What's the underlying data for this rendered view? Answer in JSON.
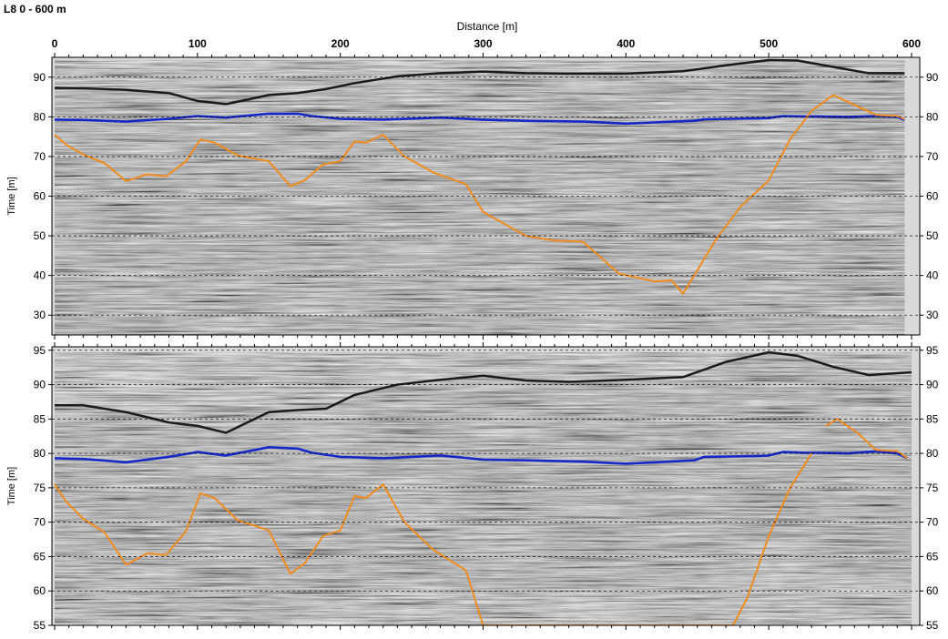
{
  "title": "L8 0 - 600 m",
  "xlabel": "Distance [m]",
  "chart_data": [
    {
      "type": "line",
      "panel": "top",
      "xlabel": "Distance [m]",
      "ylabel": "Time [m]",
      "xlim": [
        0,
        600
      ],
      "ylim": [
        25,
        95
      ],
      "x_ticks": [
        0,
        100,
        200,
        300,
        400,
        500,
        600
      ],
      "y_ticks": [
        30,
        40,
        50,
        60,
        70,
        80,
        90
      ],
      "y_tick_labels": [
        "30",
        "40",
        "50",
        "60",
        "70",
        "80",
        "90"
      ],
      "grid": true,
      "surface": {
        "x": [
          0,
          20,
          50,
          80,
          100,
          120,
          150,
          170,
          190,
          210,
          240,
          270,
          300,
          330,
          360,
          400,
          440,
          470,
          500,
          520,
          545,
          570,
          595
        ],
        "y": [
          87.3,
          87.2,
          86.8,
          86,
          84,
          83.2,
          85.5,
          86,
          87,
          88.5,
          90.2,
          91,
          91.4,
          91,
          90.9,
          90.9,
          91.5,
          93,
          94.3,
          94.2,
          92.6,
          91,
          91
        ]
      },
      "series": [
        {
          "color": "#1428c8",
          "x": [
            0,
            20,
            50,
            80,
            100,
            120,
            150,
            170,
            180,
            200,
            230,
            270,
            300,
            330,
            370,
            400,
            420,
            448,
            455,
            490,
            500,
            510,
            525,
            535,
            555,
            575,
            590,
            595
          ],
          "y": [
            79.3,
            79.2,
            78.8,
            79.5,
            80.2,
            79.8,
            80.8,
            80.8,
            80.2,
            79.5,
            79.3,
            79.8,
            79.3,
            79,
            78.8,
            78.3,
            78.6,
            79,
            79.4,
            79.6,
            79.7,
            80.2,
            80.1,
            80.1,
            80,
            80.2,
            80,
            79.2
          ]
        },
        {
          "color": "#f08c1e",
          "x": [
            0,
            8,
            20,
            35,
            50,
            65,
            78,
            92,
            102,
            112,
            128,
            150,
            165,
            175,
            188,
            200,
            210,
            218,
            230,
            245,
            265,
            288,
            300,
            330,
            350,
            370,
            395,
            420,
            432,
            440,
            462,
            480,
            500,
            515,
            530,
            545,
            560,
            575,
            590,
            595
          ],
          "y": [
            75.5,
            73,
            70.5,
            68.3,
            63.8,
            65.5,
            65,
            68.8,
            74.3,
            73.5,
            70.3,
            68.8,
            62.5,
            64,
            68,
            68.8,
            73.8,
            73.5,
            75.5,
            70,
            66,
            63,
            56,
            50,
            48.8,
            48.5,
            40.5,
            38.5,
            38.8,
            35.4,
            48.5,
            57.3,
            64,
            74.4,
            81.5,
            85.5,
            83,
            80.5,
            80.2,
            79.4
          ]
        }
      ]
    },
    {
      "type": "line",
      "panel": "bottom",
      "xlabel": "Distance [m]",
      "ylabel": "Time [m]",
      "xlim": [
        0,
        600
      ],
      "ylim": [
        55,
        95.5
      ],
      "x_ticks": [
        0,
        100,
        200,
        300,
        400,
        500,
        600
      ],
      "y_ticks": [
        55,
        60,
        65,
        70,
        75,
        80,
        85,
        90,
        95
      ],
      "y_tick_labels": [
        "55",
        "60",
        "65",
        "70",
        "75",
        "80",
        "85",
        "90",
        "95"
      ],
      "grid": true,
      "surface": {
        "x": [
          0,
          20,
          50,
          80,
          100,
          120,
          150,
          170,
          190,
          210,
          240,
          270,
          300,
          330,
          360,
          400,
          440,
          470,
          500,
          520,
          545,
          570,
          600
        ],
        "y": [
          87,
          87,
          86,
          84.5,
          84,
          83,
          86,
          86.3,
          86.5,
          88.5,
          90,
          90.7,
          91.3,
          90.6,
          90.4,
          90.7,
          91.1,
          93.3,
          94.7,
          94.2,
          92.6,
          91.4,
          91.8
        ]
      },
      "series": [
        {
          "color": "#1428c8",
          "x": [
            0,
            20,
            50,
            80,
            100,
            120,
            150,
            170,
            180,
            200,
            230,
            270,
            300,
            330,
            370,
            400,
            420,
            448,
            455,
            490,
            500,
            510,
            525,
            535,
            555,
            575,
            590,
            597
          ],
          "y": [
            79.3,
            79.2,
            78.7,
            79.5,
            80.2,
            79.7,
            80.9,
            80.7,
            80.1,
            79.5,
            79.3,
            79.7,
            79.1,
            79,
            78.8,
            78.5,
            78.7,
            79,
            79.5,
            79.6,
            79.7,
            80.2,
            80.1,
            80.1,
            80,
            80.3,
            80,
            79.3
          ]
        },
        {
          "color": "#f08c1e",
          "x": [
            0,
            8,
            20,
            35,
            50,
            65,
            78,
            92,
            102,
            112,
            128,
            150,
            165,
            175,
            188,
            200,
            210,
            218,
            230,
            245,
            265,
            288,
            300,
            475,
            485,
            500,
            515,
            530
          ],
          "y": [
            75.5,
            73,
            70.5,
            68.5,
            63.8,
            65.5,
            65.2,
            68.7,
            74.2,
            73.5,
            70.3,
            68.8,
            62.5,
            64,
            68,
            68.8,
            73.8,
            73.5,
            75.5,
            70,
            66,
            63,
            55,
            55,
            59,
            68,
            75,
            80
          ]
        },
        {
          "color": "#f08c1e",
          "x": [
            540,
            548,
            562,
            575,
            590,
            597
          ],
          "y": [
            84,
            85,
            83,
            80.5,
            80.3,
            79.3
          ]
        }
      ]
    }
  ]
}
